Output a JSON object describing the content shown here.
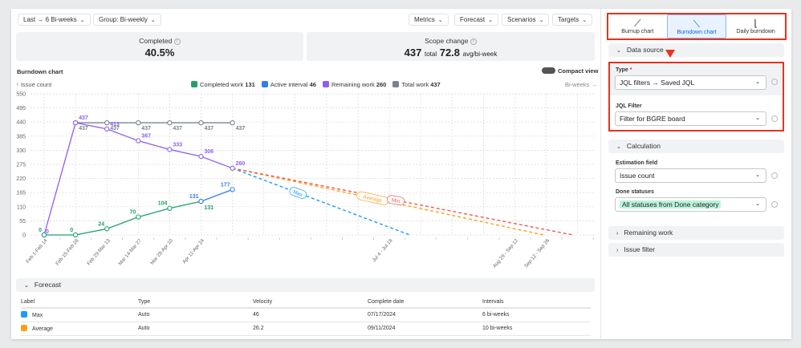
{
  "toolbar": {
    "range": "Last → 6 Bi-weeks",
    "group": "Group: Bi-weekly",
    "metrics": "Metrics",
    "forecast": "Forecast",
    "scenarios": "Scenarios",
    "targets": "Targets"
  },
  "stats": {
    "completed_label": "Completed",
    "completed_value": "40.5%",
    "scope_label": "Scope change",
    "scope_total": "437",
    "scope_total_unit": "total",
    "scope_avg": "72.8",
    "scope_avg_unit": "avg/bi-week"
  },
  "chart_header": {
    "title": "Burndown chart",
    "compact_view": "Compact view",
    "y_unit": "↑ Issue count",
    "x_unit": "Bi-weeks →"
  },
  "legend": [
    {
      "label": "Completed work",
      "value": "131",
      "color": "#22a06b"
    },
    {
      "label": "Active interval",
      "value": "46",
      "color": "#357de8"
    },
    {
      "label": "Remaining work",
      "value": "260",
      "color": "#8f5ff0"
    },
    {
      "label": "Total work",
      "value": "437",
      "color": "#758195"
    }
  ],
  "chart_data": {
    "type": "line",
    "ylim": [
      0,
      550
    ],
    "yticks": [
      0,
      55,
      110,
      165,
      220,
      275,
      330,
      385,
      440,
      495,
      550
    ],
    "x_interval_count": 18,
    "xtick_labels": [
      {
        "i": 0,
        "label": "Feb 1-Feb 14"
      },
      {
        "i": 1,
        "label": "Feb 15-Feb 28"
      },
      {
        "i": 2,
        "label": "Feb 29-Mar 13"
      },
      {
        "i": 3,
        "label": "Mar 14-Mar 27"
      },
      {
        "i": 4,
        "label": "Mar 28-Apr 10"
      },
      {
        "i": 5,
        "label": "Apr 11-Apr 24"
      },
      {
        "i": 11,
        "label": "Jul 4 - Jul 18"
      },
      {
        "i": 15,
        "label": "Aug 29 - Sep 12"
      },
      {
        "i": 16,
        "label": "Sep 12 - Sep 26"
      }
    ],
    "series": [
      {
        "name": "Total work",
        "color": "#758195",
        "x": [
          1,
          2,
          3,
          4,
          5,
          6
        ],
        "values": [
          437,
          437,
          437,
          437,
          437,
          437
        ],
        "label_pos": "below"
      },
      {
        "name": "Remaining work",
        "color": "#8f5ff0",
        "x": [
          0,
          1,
          2,
          3,
          4,
          5,
          6
        ],
        "values": [
          0,
          437,
          413,
          367,
          333,
          306,
          260
        ],
        "label_pos": "above"
      },
      {
        "name": "Completed work",
        "color": "#22a06b",
        "x": [
          0,
          1,
          2,
          3,
          4,
          5
        ],
        "values": [
          0,
          0,
          24,
          70,
          104,
          131
        ],
        "label_pos": "aboveleft"
      },
      {
        "name": "Active interval",
        "color": "#357de8",
        "x": [
          5,
          6
        ],
        "values": [
          131,
          177
        ],
        "label_pos": "aboveleft"
      }
    ],
    "forecast_lines": [
      {
        "name": "Max",
        "color": "#1d9aff",
        "from": [
          6,
          260
        ],
        "to": [
          11.65,
          0
        ]
      },
      {
        "name": "Average",
        "color": "#ff9f1a",
        "from": [
          6,
          260
        ],
        "to": [
          15.92,
          0
        ]
      },
      {
        "name": "Min",
        "color": "#f15b50",
        "from": [
          6,
          260
        ],
        "to": [
          16.85,
          0
        ]
      }
    ],
    "grid": true
  },
  "forecast": {
    "title": "Forecast",
    "columns": [
      "Label",
      "Type",
      "Velocity",
      "Complete date",
      "Intervals"
    ],
    "rows": [
      {
        "label": "Max",
        "color": "#1d9aff",
        "type": "Auto",
        "velocity": "46",
        "date": "07/17/2024",
        "intervals": "6 bi-weeks"
      },
      {
        "label": "Average",
        "color": "#ff9f1a",
        "type": "Auto",
        "velocity": "26.2",
        "date": "09/11/2024",
        "intervals": "10 bi-weeks"
      }
    ]
  },
  "right": {
    "tabs": [
      {
        "label": "Burnup chart",
        "icon": "burnup-icon"
      },
      {
        "label": "Burndown chart",
        "icon": "burndown-icon",
        "active": true
      },
      {
        "label": "Daily burndown",
        "icon": "daily-burndown-icon"
      }
    ],
    "data_source": "Data source",
    "type_label": "Type",
    "required": "*",
    "type_value": "JQL filters → Saved JQL",
    "jql_label": "JQL Filter",
    "jql_value": "Filter for BGRE board",
    "calculation": "Calculation",
    "estimation_label": "Estimation field",
    "estimation_value": "Issue count",
    "done_label": "Done statuses",
    "done_value": "All statuses from Done category",
    "remaining": "Remaining work",
    "issue_filter": "Issue filter"
  }
}
